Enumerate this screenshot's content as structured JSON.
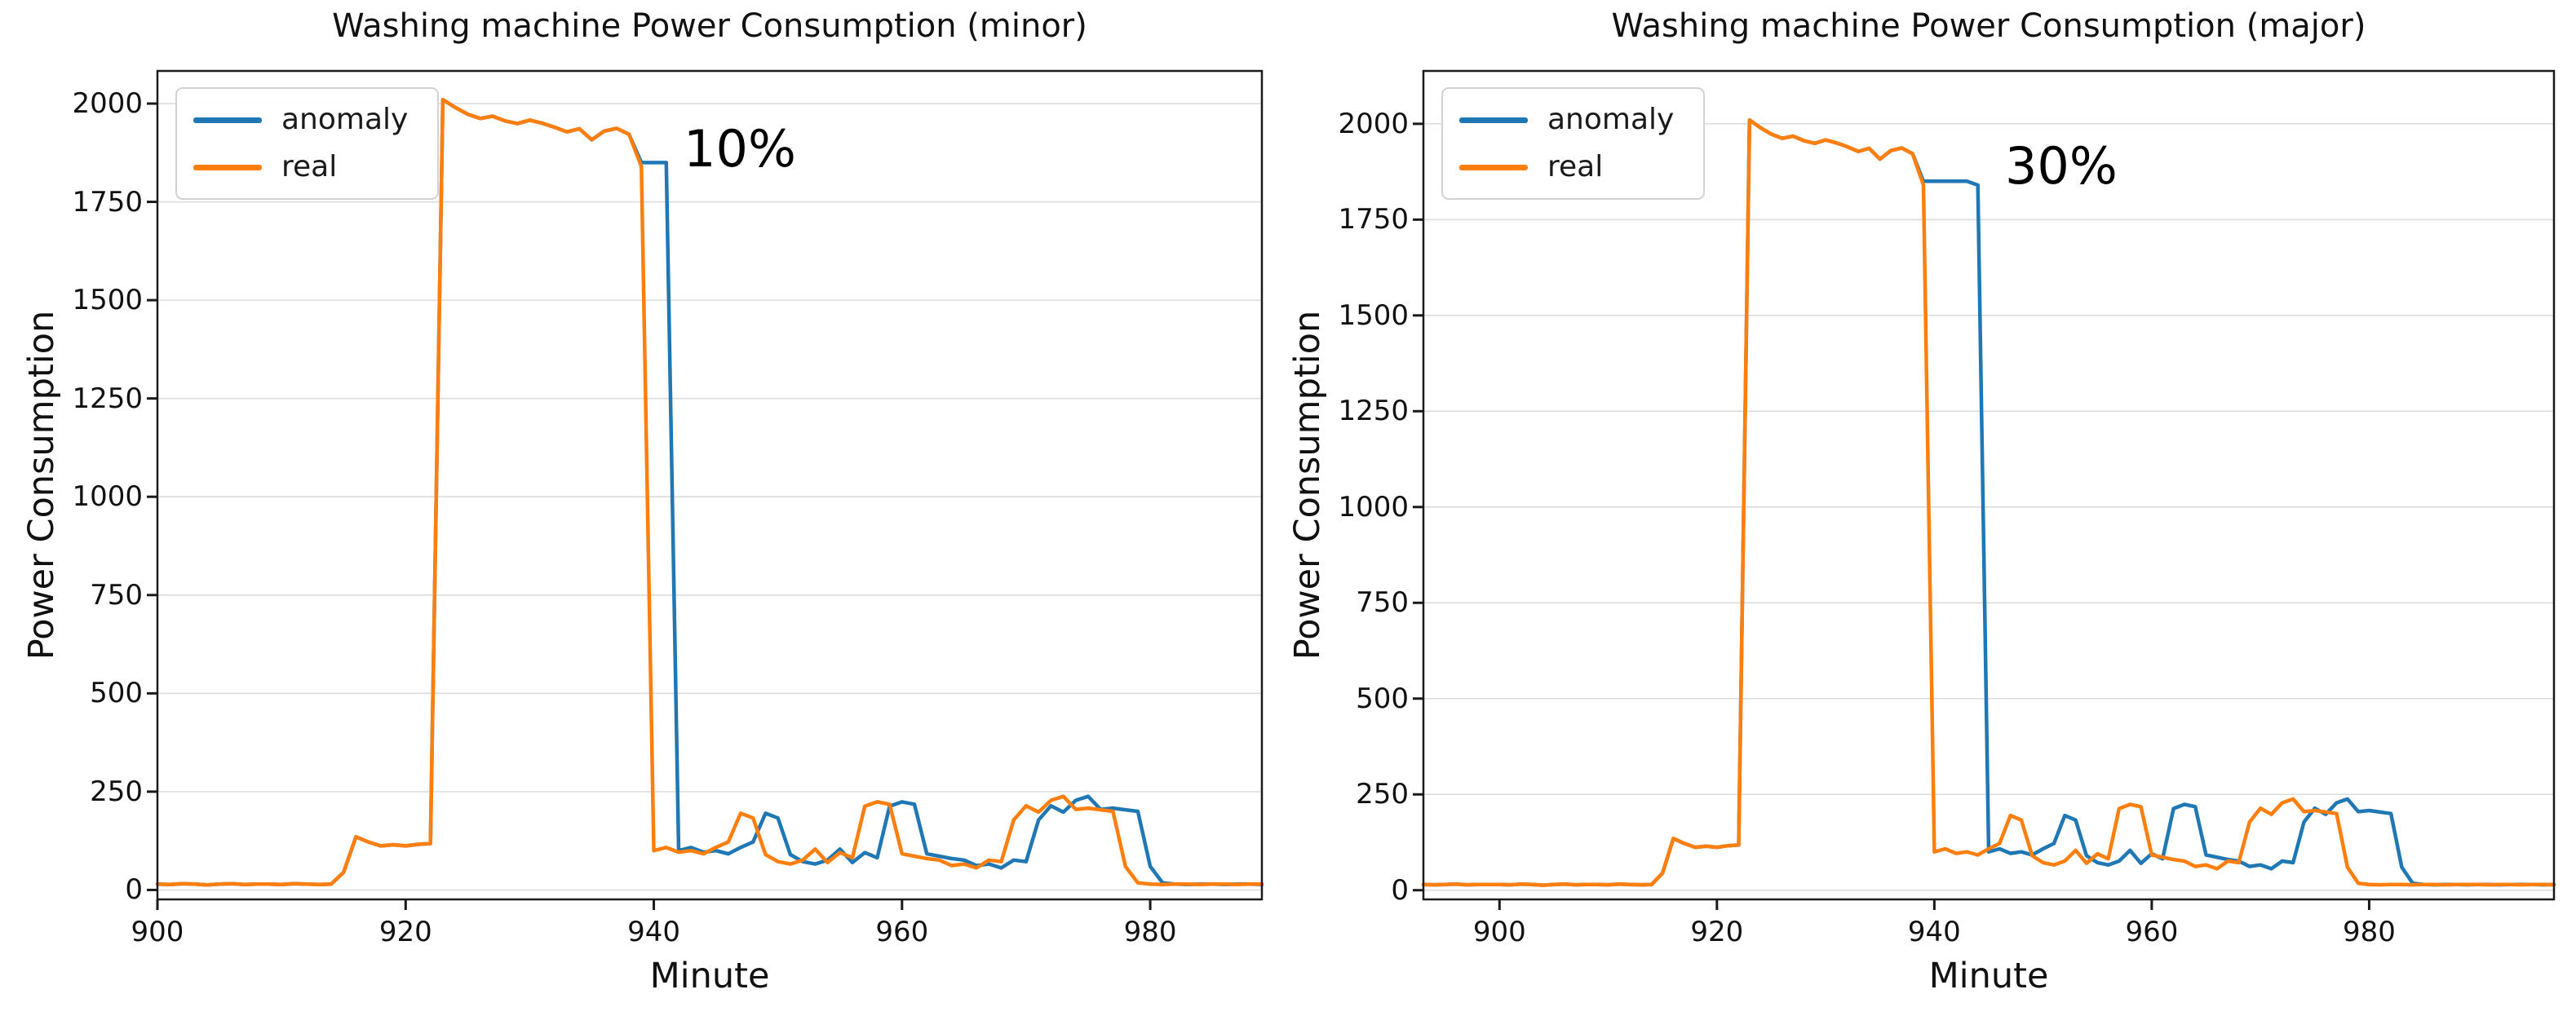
{
  "figure": {
    "background_color": "#ffffff",
    "grid_color": "#dcdcdc",
    "spine_color": "#1a1a1a",
    "text_color": "#111111"
  },
  "chart_data": [
    {
      "type": "line",
      "title": "Washing machine Power Consumption (minor)",
      "xlabel": "Minute",
      "ylabel": "Power Consumption",
      "annotation": {
        "text": "10%",
        "x": 942.4,
        "y": 1955,
        "color": "#000000"
      },
      "xlim": [
        900,
        989
      ],
      "ylim": [
        -24,
        2083
      ],
      "xticks": [
        900,
        920,
        940,
        960,
        980
      ],
      "yticks": [
        0,
        250,
        500,
        750,
        1000,
        1250,
        1500,
        1750,
        2000
      ],
      "grid": "horizontal",
      "legend": {
        "position": "upper-left",
        "entries": [
          {
            "label": "anomaly",
            "color": "#1f77b4"
          },
          {
            "label": "real",
            "color": "#ff7f0e"
          }
        ]
      },
      "x_start": 900,
      "x_step": 1,
      "series": [
        {
          "name": "anomaly",
          "color": "#1f77b4",
          "values": [
            15,
            14,
            16,
            15,
            13,
            15,
            16,
            14,
            15,
            15,
            14,
            16,
            15,
            14,
            15,
            45,
            135,
            122,
            112,
            115,
            112,
            116,
            118,
            2010,
            1990,
            1973,
            1962,
            1968,
            1956,
            1949,
            1958,
            1950,
            1940,
            1928,
            1936,
            1908,
            1930,
            1937,
            1922,
            1850,
            1850,
            1850,
            100,
            108,
            96,
            100,
            92,
            108,
            122,
            195,
            183,
            90,
            72,
            66,
            76,
            104,
            70,
            95,
            82,
            213,
            224,
            218,
            92,
            86,
            80,
            76,
            62,
            66,
            56,
            76,
            72,
            178,
            214,
            198,
            228,
            238,
            205,
            208,
            204,
            200,
            60,
            18,
            15,
            14,
            15,
            15,
            14,
            15,
            15,
            14
          ]
        },
        {
          "name": "real",
          "color": "#ff7f0e",
          "values": [
            15,
            14,
            16,
            15,
            13,
            15,
            16,
            14,
            15,
            15,
            14,
            16,
            15,
            14,
            15,
            45,
            135,
            122,
            112,
            115,
            112,
            116,
            118,
            2010,
            1990,
            1973,
            1962,
            1968,
            1956,
            1949,
            1958,
            1950,
            1940,
            1928,
            1936,
            1908,
            1930,
            1937,
            1922,
            1840,
            100,
            108,
            96,
            100,
            92,
            108,
            122,
            195,
            183,
            90,
            72,
            66,
            76,
            104,
            70,
            95,
            82,
            213,
            224,
            218,
            92,
            86,
            80,
            76,
            62,
            66,
            56,
            76,
            72,
            178,
            214,
            198,
            228,
            238,
            205,
            208,
            204,
            200,
            60,
            18,
            15,
            14,
            15,
            15,
            14,
            15,
            15,
            14,
            15,
            15
          ]
        }
      ]
    },
    {
      "type": "line",
      "title": "Washing machine Power Consumption (major)",
      "xlabel": "Minute",
      "ylabel": "Power Consumption",
      "annotation": {
        "text": "30%",
        "x": 946.5,
        "y": 1962,
        "color": "#000000"
      },
      "xlim": [
        893,
        997
      ],
      "ylim": [
        -24,
        2138
      ],
      "xticks": [
        900,
        920,
        940,
        960,
        980
      ],
      "yticks": [
        0,
        250,
        500,
        750,
        1000,
        1250,
        1500,
        1750,
        2000
      ],
      "grid": "horizontal",
      "legend": {
        "position": "upper-left",
        "entries": [
          {
            "label": "anomaly",
            "color": "#1f77b4"
          },
          {
            "label": "real",
            "color": "#ff7f0e"
          }
        ]
      },
      "x_start": 893,
      "x_step": 1,
      "series": [
        {
          "name": "anomaly",
          "color": "#1f77b4",
          "values": [
            15,
            14,
            15,
            16,
            14,
            15,
            15,
            15,
            14,
            16,
            15,
            13,
            15,
            16,
            14,
            15,
            15,
            14,
            16,
            15,
            14,
            15,
            45,
            135,
            122,
            112,
            115,
            112,
            116,
            118,
            2010,
            1990,
            1973,
            1962,
            1968,
            1956,
            1949,
            1958,
            1950,
            1940,
            1928,
            1936,
            1908,
            1930,
            1937,
            1922,
            1850,
            1850,
            1850,
            1850,
            1850,
            1840,
            100,
            108,
            96,
            100,
            92,
            108,
            122,
            195,
            183,
            90,
            72,
            66,
            76,
            104,
            70,
            95,
            82,
            213,
            224,
            218,
            92,
            86,
            80,
            76,
            62,
            66,
            56,
            76,
            72,
            178,
            214,
            198,
            228,
            238,
            205,
            208,
            204,
            200,
            60,
            18,
            15,
            14,
            15,
            15,
            14,
            15,
            15,
            14,
            15,
            15,
            15,
            14,
            15
          ]
        },
        {
          "name": "real",
          "color": "#ff7f0e",
          "values": [
            15,
            14,
            15,
            16,
            14,
            15,
            15,
            15,
            14,
            16,
            15,
            13,
            15,
            16,
            14,
            15,
            15,
            14,
            16,
            15,
            14,
            15,
            45,
            135,
            122,
            112,
            115,
            112,
            116,
            118,
            2010,
            1990,
            1973,
            1962,
            1968,
            1956,
            1949,
            1958,
            1950,
            1940,
            1928,
            1936,
            1908,
            1930,
            1937,
            1922,
            1840,
            100,
            108,
            96,
            100,
            92,
            108,
            122,
            195,
            183,
            90,
            72,
            66,
            76,
            104,
            70,
            95,
            82,
            213,
            224,
            218,
            92,
            86,
            80,
            76,
            62,
            66,
            56,
            76,
            72,
            178,
            214,
            198,
            228,
            238,
            205,
            208,
            204,
            200,
            60,
            18,
            15,
            14,
            15,
            15,
            14,
            15,
            15,
            14,
            15,
            15,
            15,
            14,
            15,
            15,
            14,
            15,
            15,
            14
          ]
        }
      ]
    }
  ]
}
